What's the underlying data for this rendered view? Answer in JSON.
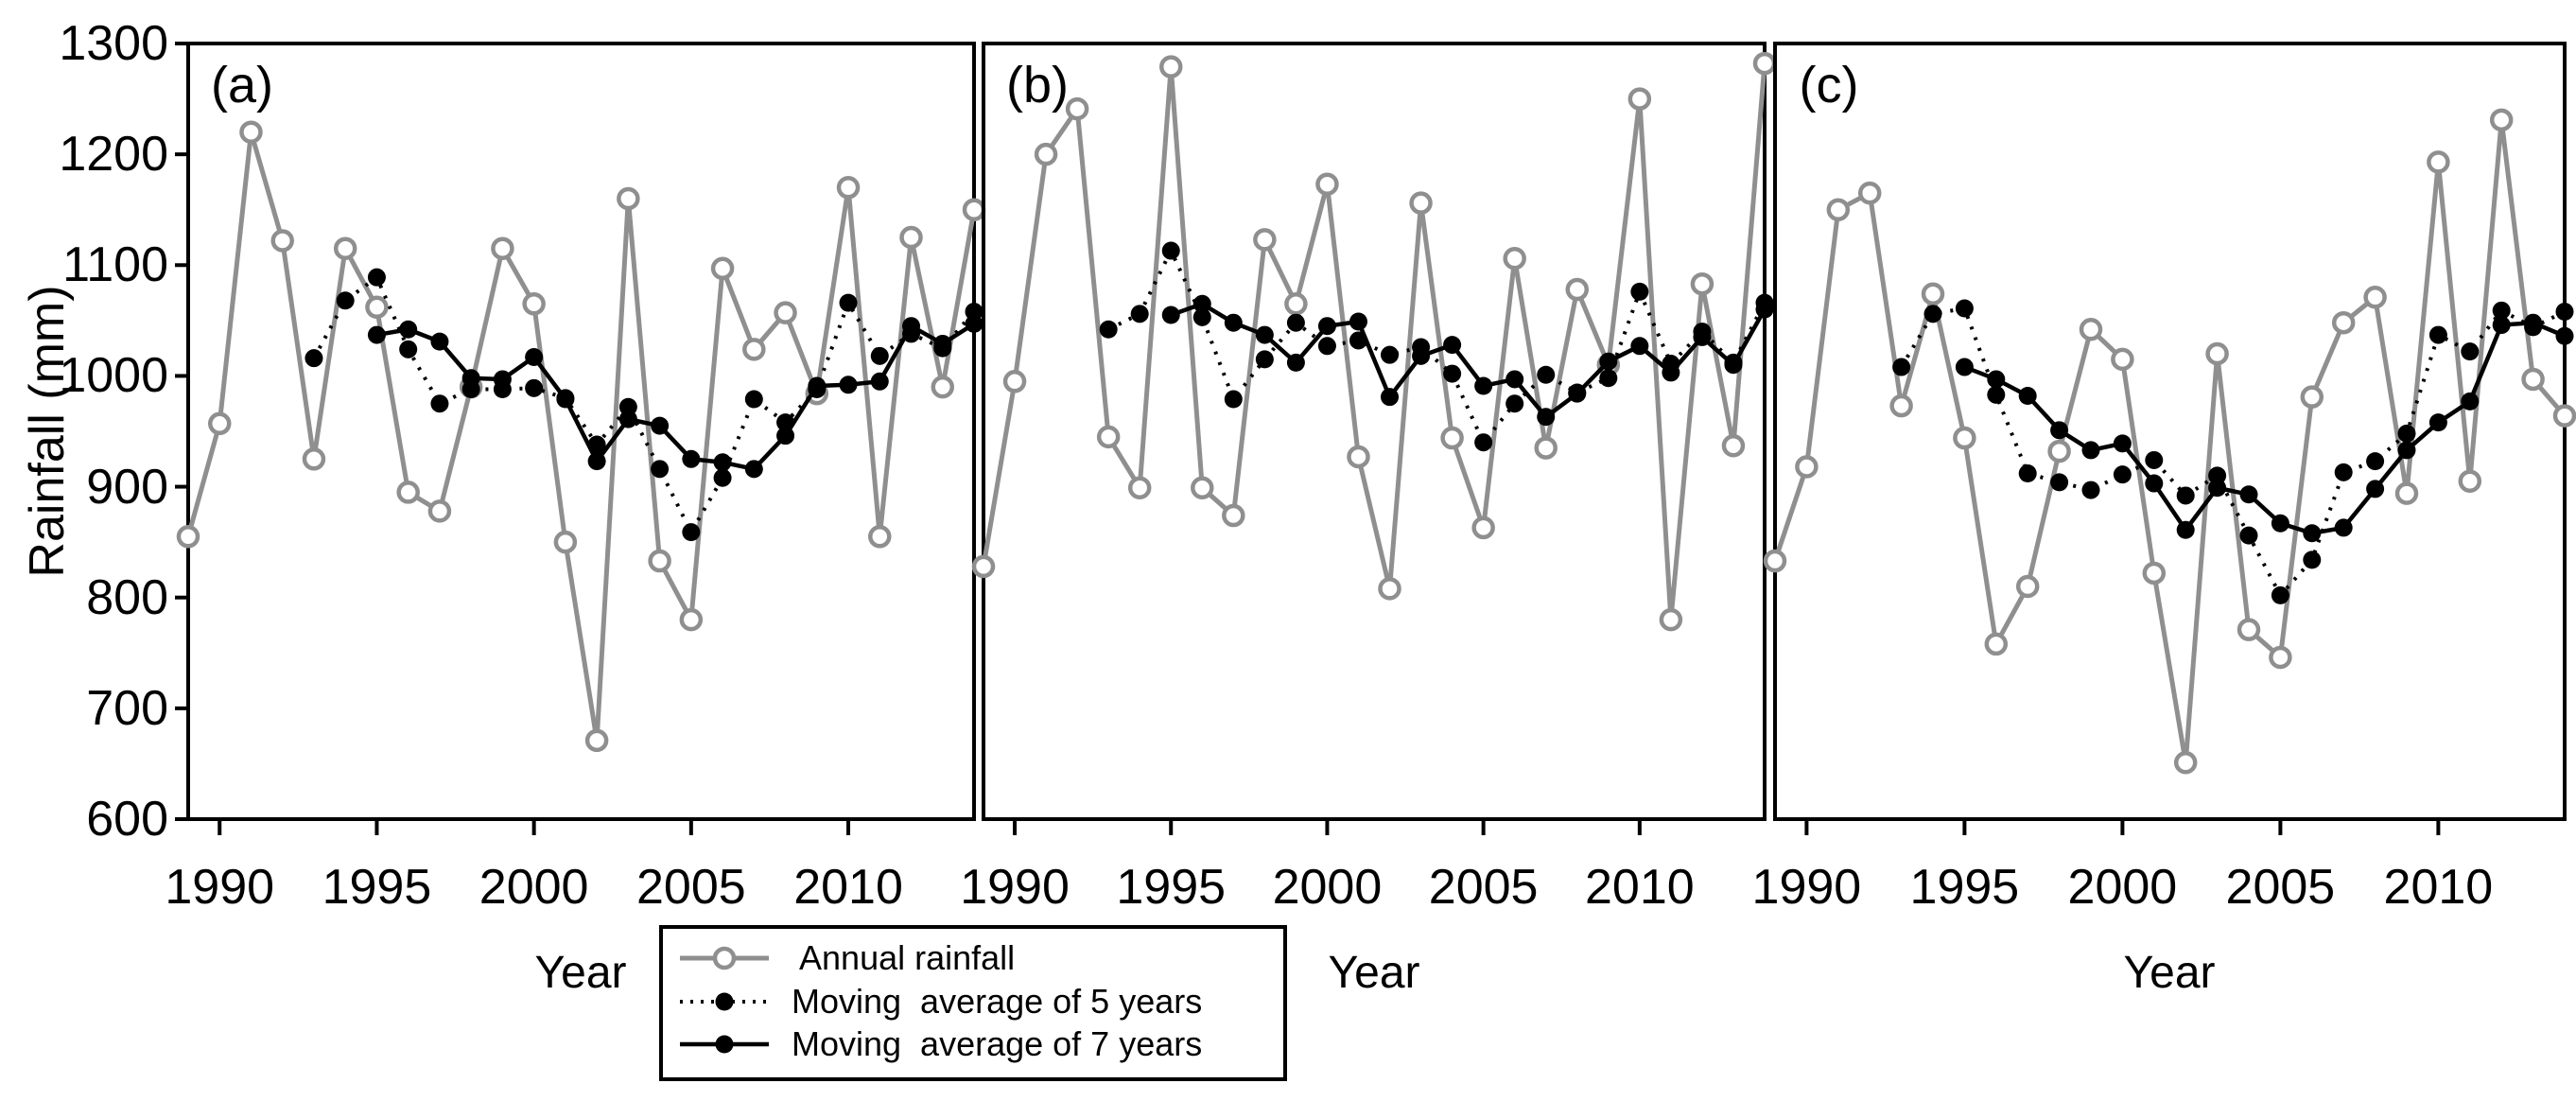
{
  "y_axis": {
    "title": "Rainfall (mm)",
    "min": 600,
    "max": 1300,
    "tick_values": [
      600,
      700,
      800,
      900,
      1000,
      1100,
      1200,
      1300
    ]
  },
  "x_axis": {
    "title": "Year",
    "tick_years": [
      1990,
      1995,
      2000,
      2005,
      2010
    ]
  },
  "legend": {
    "position": "below-left-panel-gap",
    "items": [
      {
        "id": "annual",
        "label": " Annual rainfall"
      },
      {
        "id": "ma5",
        "label": "Moving  average of 5 years"
      },
      {
        "id": "ma7",
        "label": "Moving  average of 7 years"
      }
    ]
  },
  "colors": {
    "series_gray": "#8f8f8f",
    "series_black": "#000000",
    "frame": "#000000",
    "background": "#ffffff"
  },
  "chart_data": [
    {
      "type": "line",
      "panel_label": "(a)",
      "xlabel": "Year",
      "ylabel": "Rainfall (mm)",
      "ylim": [
        600,
        1300
      ],
      "x_range": [
        1989,
        2014
      ],
      "grid": false,
      "x": [
        1989,
        1990,
        1991,
        1992,
        1993,
        1994,
        1995,
        1996,
        1997,
        1998,
        1999,
        2000,
        2001,
        2002,
        2003,
        2004,
        2005,
        2006,
        2007,
        2008,
        2009,
        2010,
        2011,
        2012,
        2013,
        2014
      ],
      "series": [
        {
          "name": "Annual rainfall",
          "line": "solid-gray",
          "marker": "open-circle",
          "values": [
            855,
            957,
            1220,
            1122,
            925,
            1115,
            1062,
            895,
            878,
            990,
            1115,
            1065,
            850,
            671,
            1160,
            833,
            780,
            1097,
            1024,
            1057,
            984,
            1170,
            855,
            1125,
            990,
            1150
          ]
        },
        {
          "name": "Moving average of 5 years",
          "line": "dotted-black",
          "marker": "filled-circle",
          "values": [
            null,
            null,
            null,
            null,
            1016,
            1068,
            1089,
            1024,
            975,
            988,
            988,
            989,
            980,
            938,
            972,
            916,
            859,
            908,
            979,
            958,
            988,
            1066,
            1018,
            1038,
            1025,
            1058
          ]
        },
        {
          "name": "Moving average of 7 years",
          "line": "solid-black",
          "marker": "filled-circle",
          "values": [
            null,
            null,
            null,
            null,
            null,
            null,
            1037,
            1042,
            1031,
            998,
            997,
            1017,
            979,
            923,
            961,
            955,
            925,
            922,
            916,
            946,
            991,
            992,
            995,
            1045,
            1029,
            1047
          ]
        }
      ]
    },
    {
      "type": "line",
      "panel_label": "(b)",
      "xlabel": "Year",
      "ylabel": "Rainfall (mm)",
      "ylim": [
        600,
        1300
      ],
      "x_range": [
        1989,
        2014
      ],
      "grid": false,
      "x": [
        1989,
        1990,
        1991,
        1992,
        1993,
        1994,
        1995,
        1996,
        1997,
        1998,
        1999,
        2000,
        2001,
        2002,
        2003,
        2004,
        2005,
        2006,
        2007,
        2008,
        2009,
        2010,
        2011,
        2012,
        2013,
        2014
      ],
      "series": [
        {
          "name": "Annual rainfall",
          "line": "solid-gray",
          "marker": "open-circle",
          "values": [
            828,
            995,
            1200,
            1241,
            945,
            899,
            1279,
            899,
            874,
            1123,
            1065,
            1173,
            927,
            808,
            1156,
            944,
            863,
            1106,
            935,
            1078,
            1010,
            1250,
            780,
            1083,
            937,
            1282
          ]
        },
        {
          "name": "Moving average of 5 years",
          "line": "dotted-black",
          "marker": "filled-circle",
          "values": [
            null,
            null,
            null,
            null,
            1042,
            1056,
            1113,
            1053,
            979,
            1015,
            1048,
            1027,
            1032,
            1019,
            1026,
            1002,
            940,
            975,
            1001,
            985,
            998,
            1076,
            1011,
            1040,
            1012,
            1066
          ]
        },
        {
          "name": "Moving average of 7 years",
          "line": "solid-black",
          "marker": "filled-circle",
          "values": [
            null,
            null,
            null,
            null,
            null,
            null,
            1055,
            1065,
            1048,
            1037,
            1012,
            1045,
            1049,
            981,
            1018,
            1028,
            991,
            997,
            963,
            984,
            1013,
            1027,
            1003,
            1035,
            1010,
            1060
          ]
        }
      ]
    },
    {
      "type": "line",
      "panel_label": "(c)",
      "xlabel": "Year",
      "ylabel": "Rainfall (mm)",
      "ylim": [
        600,
        1300
      ],
      "x_range": [
        1989,
        2014
      ],
      "grid": false,
      "x": [
        1989,
        1990,
        1991,
        1992,
        1993,
        1994,
        1995,
        1996,
        1997,
        1998,
        1999,
        2000,
        2001,
        2002,
        2003,
        2004,
        2005,
        2006,
        2007,
        2008,
        2009,
        2010,
        2011,
        2012,
        2013,
        2014
      ],
      "series": [
        {
          "name": "Annual rainfall",
          "line": "solid-gray",
          "marker": "open-circle",
          "values": [
            833,
            918,
            1150,
            1165,
            973,
            1074,
            944,
            758,
            810,
            932,
            1042,
            1015,
            822,
            651,
            1020,
            771,
            746,
            981,
            1048,
            1071,
            894,
            1193,
            905,
            1231,
            997,
            964
          ]
        },
        {
          "name": "Moving average of 5 years",
          "line": "dotted-black",
          "marker": "filled-circle",
          "values": [
            null,
            null,
            null,
            null,
            1008,
            1056,
            1061,
            983,
            912,
            904,
            897,
            911,
            924,
            892,
            910,
            856,
            802,
            834,
            913,
            923,
            948,
            1037,
            1022,
            1059,
            1044,
            1058
          ]
        },
        {
          "name": "Moving average of 7 years",
          "line": "solid-black",
          "marker": "filled-circle",
          "values": [
            null,
            null,
            null,
            null,
            null,
            null,
            1008,
            997,
            982,
            951,
            933,
            939,
            903,
            861,
            899,
            893,
            867,
            858,
            863,
            898,
            933,
            958,
            977,
            1046,
            1048,
            1036
          ]
        }
      ]
    }
  ]
}
